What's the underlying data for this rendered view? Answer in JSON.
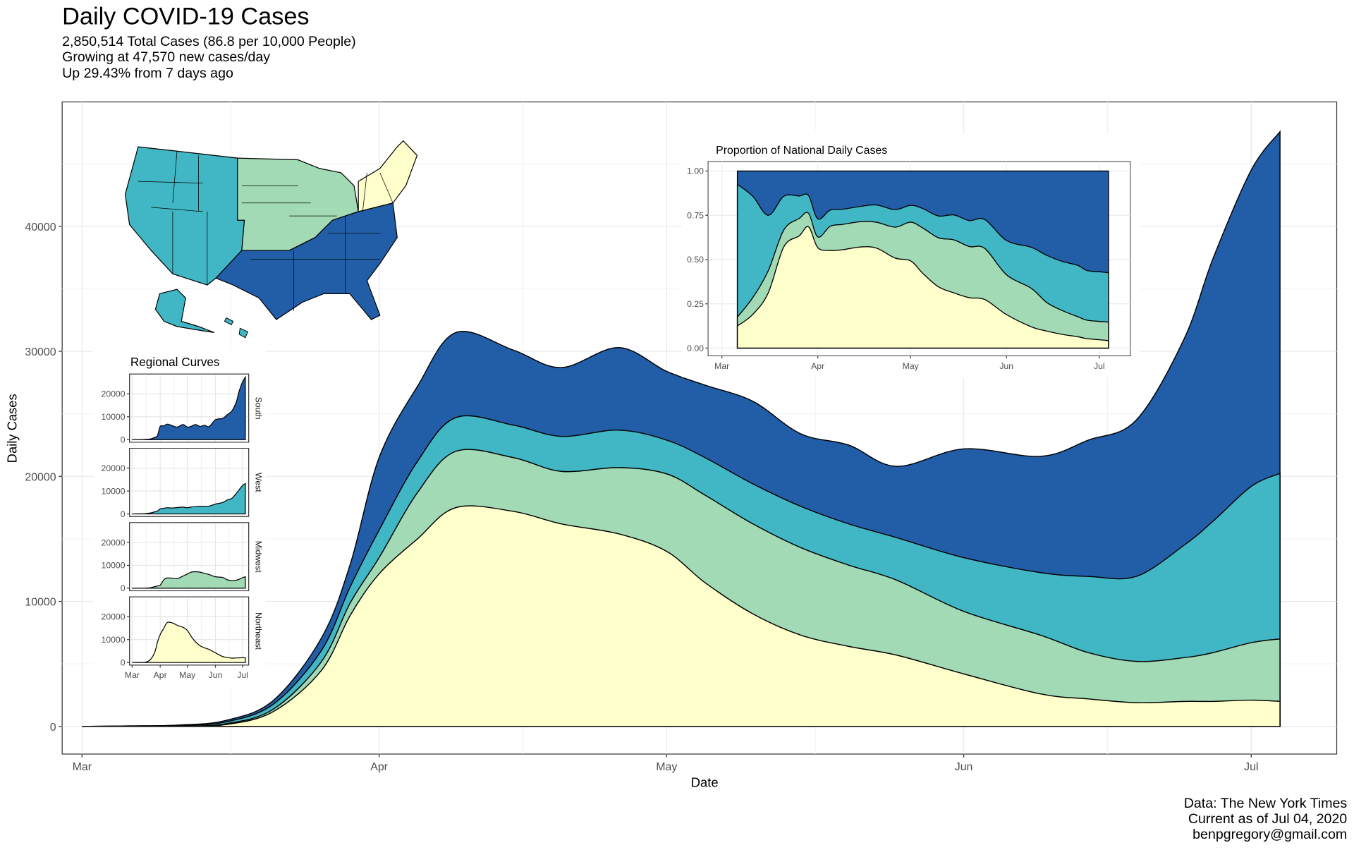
{
  "title": "Daily COVID-19 Cases",
  "subtitle": [
    "2,850,514 Total Cases (86.8 per 10,000 People)",
    "Growing at 47,570 new cases/day",
    "Up 29.43% from 7 days ago"
  ],
  "caption": [
    "Data: The New York Times",
    "Current as of Jul 04, 2020",
    "benpgregory@gmail.com"
  ],
  "colors": {
    "Northeast": "#FFFFCC",
    "Midwest": "#A1DAB4",
    "West": "#41B6C4",
    "South": "#225EA8"
  },
  "chart_data": [
    {
      "type": "area",
      "stacked": true,
      "title": "Daily COVID-19 Cases",
      "xlabel": "Date",
      "ylabel": "Daily Cases",
      "x_ticks": [
        "Mar",
        "Apr",
        "May",
        "Jun",
        "Jul"
      ],
      "x_tick_dates": [
        "2020-03-01",
        "2020-04-01",
        "2020-05-01",
        "2020-06-01",
        "2020-07-01"
      ],
      "y_ticks": [
        0,
        10000,
        20000,
        30000,
        40000
      ],
      "ylim": [
        0,
        50000
      ],
      "grid": true,
      "dates": [
        "2020-03-01",
        "2020-03-06",
        "2020-03-11",
        "2020-03-16",
        "2020-03-21",
        "2020-03-26",
        "2020-03-29",
        "2020-04-01",
        "2020-04-05",
        "2020-04-09",
        "2020-04-15",
        "2020-04-20",
        "2020-04-26",
        "2020-05-01",
        "2020-05-05",
        "2020-05-10",
        "2020-05-15",
        "2020-05-20",
        "2020-05-25",
        "2020-06-01",
        "2020-06-09",
        "2020-06-14",
        "2020-06-19",
        "2020-06-24",
        "2020-06-27",
        "2020-07-01",
        "2020-07-04"
      ],
      "series": [
        {
          "name": "Northeast",
          "values": [
            0,
            5,
            20,
            150,
            1200,
            4500,
            8900,
            12200,
            15000,
            17500,
            17200,
            16200,
            15400,
            14000,
            11500,
            9000,
            7300,
            6400,
            5700,
            4200,
            2600,
            2200,
            1900,
            2000,
            2000,
            2100,
            2000
          ]
        },
        {
          "name": "Midwest",
          "values": [
            0,
            2,
            10,
            60,
            200,
            700,
            1000,
            1300,
            3700,
            4500,
            4300,
            4200,
            5300,
            6200,
            7000,
            7200,
            7000,
            6500,
            6000,
            5000,
            4700,
            3700,
            3300,
            3500,
            3900,
            4600,
            5000
          ]
        },
        {
          "name": "West",
          "values": [
            0,
            30,
            60,
            150,
            400,
            900,
            1300,
            2200,
            2500,
            2700,
            2600,
            2800,
            3000,
            2700,
            3000,
            3200,
            3300,
            3300,
            3400,
            4300,
            5000,
            6100,
            6800,
            9000,
            10500,
            12500,
            13240
          ]
        },
        {
          "name": "South",
          "values": [
            0,
            3,
            15,
            120,
            300,
            1000,
            1800,
            5800,
            6000,
            6800,
            6000,
            5500,
            6600,
            5500,
            5800,
            6600,
            5800,
            6300,
            5700,
            8700,
            9300,
            10900,
            12500,
            16500,
            21000,
            25300,
            27330
          ]
        }
      ]
    },
    {
      "type": "area",
      "stacked": true,
      "normalized": true,
      "title": "Proportion of National Daily Cases",
      "x_ticks": [
        "Mar",
        "Apr",
        "May",
        "Jun",
        "Jul"
      ],
      "y_ticks": [
        "0.00",
        "0.25",
        "0.50",
        "0.75",
        "1.00"
      ],
      "ylim": [
        0,
        1
      ],
      "start_date": "2020-03-06",
      "note_series": "shares of chart_data[0] series"
    },
    {
      "type": "area",
      "title": "Regional Curves",
      "facets": [
        "South",
        "West",
        "Midwest",
        "Northeast"
      ],
      "x_ticks": [
        "Mar",
        "Apr",
        "May",
        "Jun",
        "Jul"
      ],
      "y_ticks": [
        "0",
        "10000",
        "20000"
      ],
      "ylim": [
        0,
        28600
      ]
    }
  ]
}
